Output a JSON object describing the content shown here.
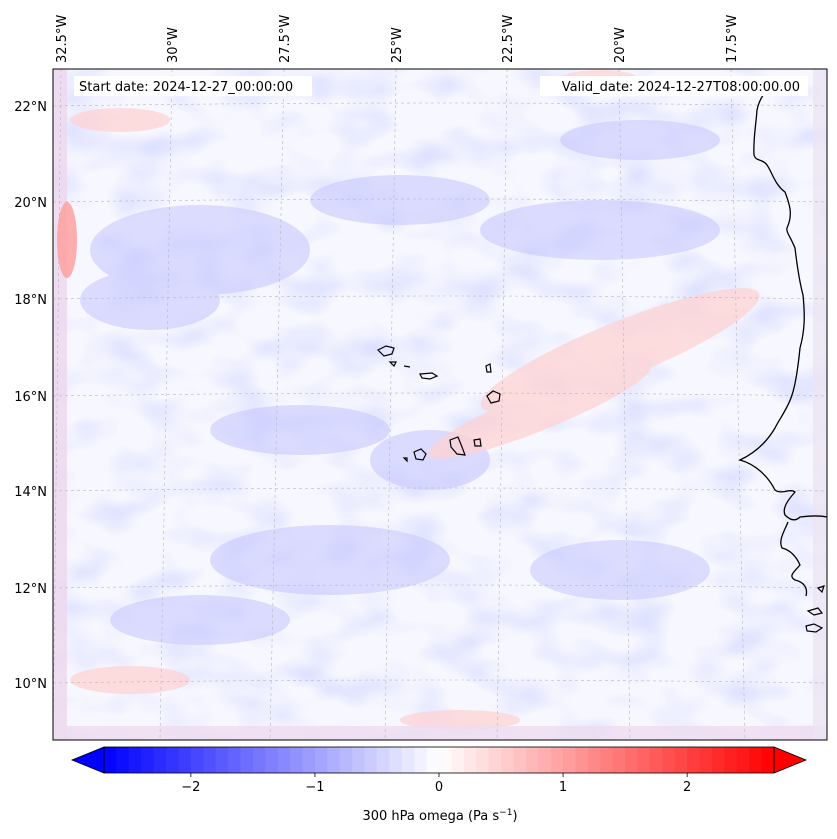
{
  "map": {
    "start_label": "Start date: 2024-12-27_00:00:00",
    "valid_label": "Valid_date: 2024-12-27T08:00:00.00",
    "lon_labels": [
      "32.5°W",
      "30°W",
      "27.5°W",
      "25°W",
      "22.5°W",
      "20°W",
      "17.5°W"
    ],
    "lat_labels": [
      "22°N",
      "20°N",
      "18°N",
      "16°N",
      "14°N",
      "12°N",
      "10°N"
    ],
    "field": "300 hPa omega",
    "colormap": "bwr"
  },
  "colorbar": {
    "label": "300 hPa omega (Pa s",
    "label_exp": "−1",
    "label_close": ")",
    "ticks": [
      "−2",
      "−1",
      "0",
      "1",
      "2"
    ],
    "tick_values": [
      -2,
      -1,
      0,
      1,
      2
    ],
    "range": [
      -2.7,
      2.7
    ],
    "color_min": "#0000ff",
    "color_mid": "#ffffff",
    "color_max": "#ff0000"
  }
}
